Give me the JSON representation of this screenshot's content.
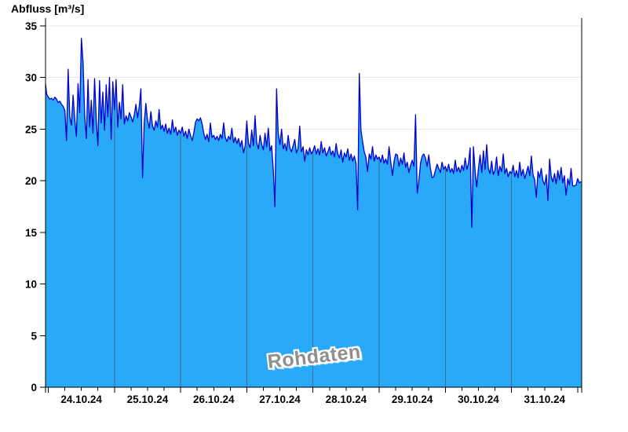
{
  "chart_data": {
    "type": "area",
    "title": "Abfluss [m³/s]",
    "watermark": "Rohdaten",
    "legend_position": "none",
    "grid": {
      "horizontal": true,
      "vertical_day_separators": true
    },
    "y_axis": {
      "min": 0,
      "max": 35,
      "tick_step": 5,
      "tick_labels": [
        "0",
        "5",
        "10",
        "15",
        "20",
        "25",
        "30",
        "35"
      ]
    },
    "x_axis": {
      "day_labels": [
        "24.10.24",
        "25.10.24",
        "26.10.24",
        "27.10.24",
        "28.10.24",
        "29.10.24",
        "30.10.24",
        "31.10.24"
      ],
      "days_shown": 8,
      "minor_tick_hours": 6
    },
    "series": [
      {
        "name": "Abfluss Rohdaten",
        "unit": "m³/s",
        "t_start_days": -0.05,
        "t_step_days": 0.025,
        "values": [
          29.4,
          28.4,
          28.1,
          27.9,
          28.0,
          27.8,
          28.1,
          27.9,
          27.6,
          27.7,
          27.4,
          27.2,
          26.8,
          23.9,
          30.8,
          26.2,
          25.4,
          28.3,
          26.0,
          24.3,
          29.4,
          26.6,
          33.8,
          31.5,
          26.3,
          24.1,
          29.8,
          25.2,
          27.8,
          24.6,
          29.9,
          26.0,
          23.4,
          29.7,
          25.6,
          28.6,
          24.9,
          29.3,
          26.2,
          30.0,
          24.0,
          29.6,
          26.9,
          29.8,
          25.2,
          27.6,
          26.0,
          29.3,
          25.5,
          26.3,
          25.8,
          26.6,
          26.2,
          25.7,
          26.4,
          27.4,
          26.1,
          27.2,
          28.9,
          20.3,
          25.6,
          27.5,
          25.9,
          25.1,
          26.7,
          25.3,
          24.9,
          25.8,
          25.2,
          26.9,
          25.0,
          25.4,
          24.8,
          25.5,
          24.6,
          25.1,
          24.5,
          25.9,
          24.7,
          25.2,
          24.4,
          24.9,
          24.6,
          25.2,
          24.3,
          24.8,
          24.1,
          25.0,
          24.4,
          23.9,
          24.7,
          25.7,
          26.0,
          25.8,
          26.1,
          25.5,
          24.6,
          24.0,
          24.5,
          23.8,
          25.6,
          24.2,
          24.4,
          24.0,
          24.3,
          23.9,
          24.5,
          24.1,
          25.6,
          24.2,
          23.8,
          24.3,
          24.0,
          25.1,
          23.7,
          24.2,
          23.6,
          24.1,
          23.3,
          23.9,
          22.7,
          23.4,
          25.8,
          23.6,
          23.2,
          24.9,
          23.4,
          26.3,
          23.7,
          23.1,
          24.4,
          23.5,
          23.0,
          24.6,
          23.3,
          25.1,
          22.9,
          23.4,
          21.1,
          17.5,
          28.9,
          24.6,
          23.5,
          25.0,
          23.1,
          23.6,
          22.9,
          24.4,
          23.2,
          22.8,
          23.4,
          24.0,
          22.7,
          23.1,
          25.3,
          22.8,
          23.3,
          21.9,
          23.0,
          22.5,
          23.2,
          22.6,
          22.9,
          23.4,
          22.6,
          23.1,
          22.5,
          23.8,
          22.7,
          23.2,
          22.4,
          22.8,
          23.3,
          22.5,
          22.9,
          22.3,
          23.6,
          22.6,
          22.2,
          23.0,
          21.8,
          22.7,
          22.3,
          23.1,
          22.0,
          22.6,
          21.9,
          22.4,
          21.7,
          17.2,
          30.4,
          24.9,
          23.8,
          22.8,
          22.3,
          20.9,
          22.6,
          22.1,
          23.3,
          21.9,
          22.5,
          22.1,
          22.3,
          21.8,
          22.5,
          21.7,
          22.1,
          21.6,
          23.3,
          21.8,
          20.5,
          21.9,
          22.6,
          22.5,
          21.4,
          22.2,
          21.6,
          22.7,
          21.3,
          21.8,
          20.8,
          21.5,
          22.0,
          21.4,
          26.4,
          18.8,
          20.0,
          21.7,
          22.4,
          22.6,
          22.2,
          21.4,
          22.5,
          21.2,
          20.3,
          20.4,
          21.0,
          21.6,
          21.2,
          20.8,
          21.8,
          21.1,
          21.4,
          20.9,
          21.6,
          20.8,
          21.2,
          20.7,
          22.0,
          20.9,
          21.3,
          20.8,
          21.5,
          21.0,
          22.2,
          21.1,
          21.7,
          23.2,
          15.5,
          23.3,
          21.0,
          19.4,
          21.2,
          22.5,
          20.8,
          22.9,
          21.1,
          23.5,
          21.2,
          20.7,
          21.9,
          20.6,
          21.0,
          22.3,
          20.5,
          21.4,
          20.9,
          22.6,
          20.7,
          21.2,
          20.4,
          20.9,
          20.7,
          21.5,
          20.4,
          21.0,
          20.3,
          21.8,
          20.5,
          21.1,
          20.2,
          20.8,
          21.4,
          20.5,
          22.4,
          20.6,
          20.1,
          18.4,
          20.9,
          20.3,
          21.2,
          20.0,
          19.6,
          20.6,
          18.1,
          22.1,
          20.4,
          19.9,
          20.7,
          19.7,
          21.0,
          20.1,
          21.3,
          19.8,
          20.5,
          18.6,
          20.2,
          19.6,
          21.2,
          19.5,
          19.5,
          19.6,
          20.2,
          19.8,
          19.9
        ]
      }
    ],
    "colors": {
      "fill": "#29a9f7",
      "line": "#0000cd",
      "horizontal_grid": "#e7e7e7",
      "day_grid": "#44708e",
      "axis": "#000000",
      "watermark_text": "#8f8f8f",
      "background": "#ffffff"
    }
  }
}
